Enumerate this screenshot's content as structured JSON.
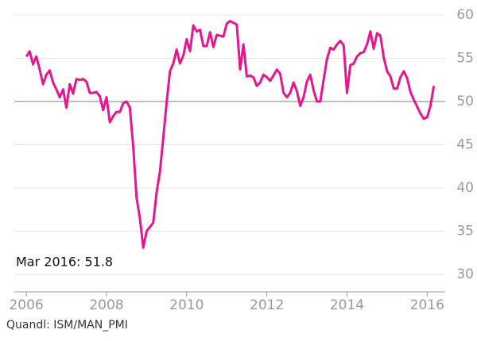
{
  "chart_data": {
    "type": "line",
    "annotation": "Mar 2016:  51.8",
    "source": "Quandl: ISM/MAN_PMI",
    "x": [
      "2006-01",
      "2006-02",
      "2006-03",
      "2006-04",
      "2006-05",
      "2006-06",
      "2006-07",
      "2006-08",
      "2006-09",
      "2006-10",
      "2006-11",
      "2006-12",
      "2007-01",
      "2007-02",
      "2007-03",
      "2007-04",
      "2007-05",
      "2007-06",
      "2007-07",
      "2007-08",
      "2007-09",
      "2007-10",
      "2007-11",
      "2007-12",
      "2008-01",
      "2008-02",
      "2008-03",
      "2008-04",
      "2008-05",
      "2008-06",
      "2008-07",
      "2008-08",
      "2008-09",
      "2008-10",
      "2008-11",
      "2008-12",
      "2009-01",
      "2009-02",
      "2009-03",
      "2009-04",
      "2009-05",
      "2009-06",
      "2009-07",
      "2009-08",
      "2009-09",
      "2009-10",
      "2009-11",
      "2009-12",
      "2010-01",
      "2010-02",
      "2010-03",
      "2010-04",
      "2010-05",
      "2010-06",
      "2010-07",
      "2010-08",
      "2010-09",
      "2010-10",
      "2010-11",
      "2010-12",
      "2011-01",
      "2011-02",
      "2011-03",
      "2011-04",
      "2011-05",
      "2011-06",
      "2011-07",
      "2011-08",
      "2011-09",
      "2011-10",
      "2011-11",
      "2011-12",
      "2012-01",
      "2012-02",
      "2012-03",
      "2012-04",
      "2012-05",
      "2012-06",
      "2012-07",
      "2012-08",
      "2012-09",
      "2012-10",
      "2012-11",
      "2012-12",
      "2013-01",
      "2013-02",
      "2013-03",
      "2013-04",
      "2013-05",
      "2013-06",
      "2013-07",
      "2013-08",
      "2013-09",
      "2013-10",
      "2013-11",
      "2013-12",
      "2014-01",
      "2014-02",
      "2014-03",
      "2014-04",
      "2014-05",
      "2014-06",
      "2014-07",
      "2014-08",
      "2014-09",
      "2014-10",
      "2014-11",
      "2014-12",
      "2015-01",
      "2015-02",
      "2015-03",
      "2015-04",
      "2015-05",
      "2015-06",
      "2015-07",
      "2015-08",
      "2015-09",
      "2015-10",
      "2015-11",
      "2015-12",
      "2016-01",
      "2016-02",
      "2016-03"
    ],
    "series": [
      {
        "name": "ISM/MAN_PMI",
        "color": "#e5168e",
        "values": [
          55.2,
          55.8,
          54.3,
          55.2,
          53.7,
          52.0,
          53.1,
          53.6,
          52.2,
          51.4,
          50.5,
          51.4,
          49.3,
          52.0,
          50.9,
          52.6,
          52.5,
          52.6,
          52.3,
          51.0,
          51.0,
          51.1,
          50.6,
          49.0,
          50.5,
          47.6,
          48.3,
          48.8,
          48.8,
          49.8,
          50.0,
          49.3,
          44.8,
          38.9,
          36.5,
          33.1,
          35.0,
          35.5,
          36.0,
          39.5,
          41.9,
          45.8,
          49.9,
          53.5,
          54.4,
          56.0,
          54.4,
          55.3,
          57.2,
          55.8,
          58.8,
          58.1,
          58.3,
          56.4,
          56.4,
          58.0,
          56.3,
          57.7,
          57.6,
          57.5,
          59.0,
          59.3,
          59.1,
          58.9,
          53.7,
          56.6,
          52.9,
          53.0,
          52.8,
          51.8,
          52.2,
          53.1,
          52.8,
          52.4,
          53.0,
          53.7,
          53.2,
          51.0,
          50.5,
          51.0,
          52.2,
          51.2,
          49.5,
          50.5,
          52.3,
          53.1,
          51.3,
          50.0,
          50.0,
          52.5,
          54.9,
          56.2,
          56.0,
          56.6,
          57.0,
          56.5,
          51.0,
          54.2,
          54.4,
          55.2,
          55.6,
          55.7,
          56.6,
          58.1,
          56.1,
          57.9,
          57.6,
          55.1,
          53.5,
          52.9,
          51.5,
          51.5,
          52.8,
          53.5,
          52.7,
          51.1,
          50.2,
          49.4,
          48.6,
          48.0,
          48.2,
          49.5,
          51.8
        ]
      }
    ],
    "hline": 50,
    "xlim": [
      2005.7,
      2016.45
    ],
    "xticks": [
      2006,
      2008,
      2010,
      2012,
      2014,
      2016
    ],
    "ylim": [
      28,
      61
    ],
    "yticks": [
      30,
      35,
      40,
      45,
      50,
      55,
      60
    ],
    "grid": true
  }
}
